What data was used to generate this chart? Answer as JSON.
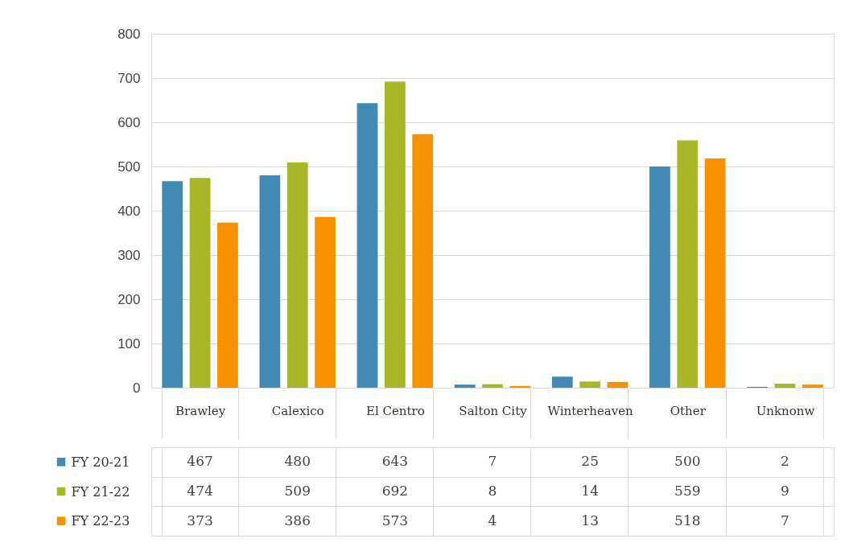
{
  "chart_data": {
    "type": "bar",
    "categories": [
      "Brawley",
      "Calexico",
      "El Centro",
      "Salton City",
      "Winterheaven",
      "Other",
      "Unknonw"
    ],
    "series": [
      {
        "name": "FY 20-21",
        "color": "#418ab3",
        "values": [
          467,
          480,
          643,
          7,
          25,
          500,
          2
        ]
      },
      {
        "name": "FY 21-22",
        "color": "#a6b727",
        "values": [
          474,
          509,
          692,
          8,
          14,
          559,
          9
        ]
      },
      {
        "name": "FY 22-23",
        "color": "#f69200",
        "values": [
          373,
          386,
          573,
          4,
          13,
          518,
          7
        ]
      }
    ],
    "ylim": [
      0,
      800
    ],
    "yticks": [
      0,
      100,
      200,
      300,
      400,
      500,
      600,
      700,
      800
    ],
    "grid": "y",
    "legend": "bottom left",
    "data_labels": true
  }
}
